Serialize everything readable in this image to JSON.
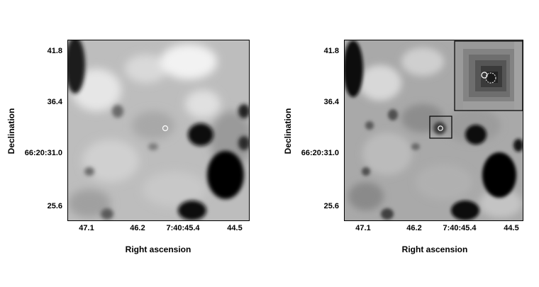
{
  "panels": [
    {
      "y_ticks": [
        "41.8",
        "36.4",
        "66:20:31.0",
        "25.6"
      ],
      "x_ticks": [
        "47.1",
        "46.2",
        "7:40:45.4",
        "44.5"
      ],
      "xlabel": "Right ascension",
      "ylabel": "Declination"
    },
    {
      "y_ticks": [
        "41.8",
        "36.4",
        "66:20:31.0",
        "25.6"
      ],
      "x_ticks": [
        "47.1",
        "46.2",
        "7:40:45.4",
        "44.5"
      ],
      "xlabel": "Right ascension",
      "ylabel": "Declination"
    }
  ]
}
